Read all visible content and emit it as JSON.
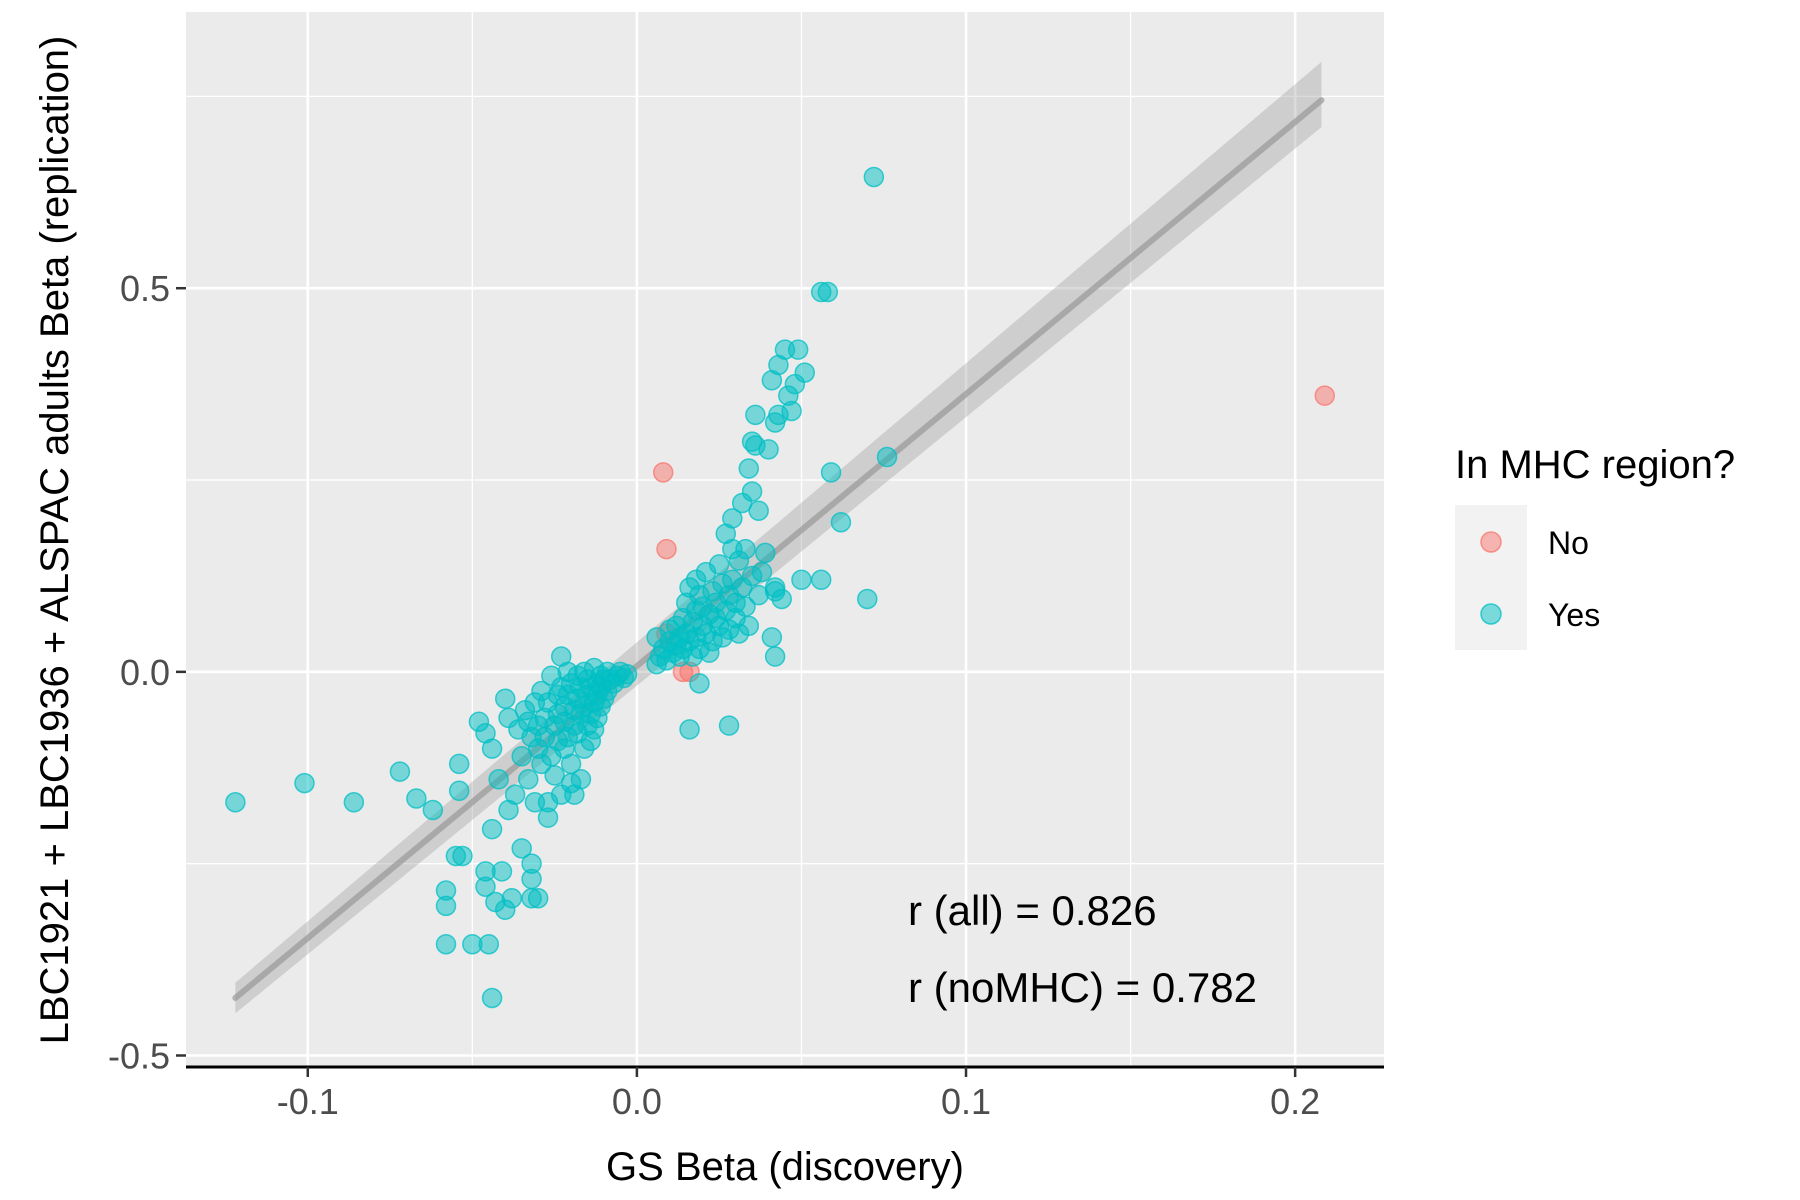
{
  "chart_data": {
    "type": "scatter",
    "xlabel": "GS Beta (discovery)",
    "ylabel": "LBC1921 + LBC1936 + ALSPAC adults Beta (replication)",
    "xlim": [
      -0.137,
      0.227
    ],
    "ylim": [
      -0.515,
      0.86
    ],
    "x_ticks": [
      -0.1,
      0.0,
      0.1,
      0.2
    ],
    "x_tick_labels": [
      "-0.1",
      "0.0",
      "0.1",
      "0.2"
    ],
    "y_ticks": [
      -0.5,
      0.0,
      0.5
    ],
    "y_tick_labels": [
      "-0.5",
      "0.0",
      "0.5"
    ],
    "grid": true,
    "legend": {
      "title": "In MHC region?",
      "position": "right",
      "entries": [
        {
          "label": "No",
          "color": "#F8766D"
        },
        {
          "label": "Yes",
          "color": "#00BFC4"
        }
      ]
    },
    "annotations": [
      "r (all) = 0.826",
      "r (noMHC) = 0.782"
    ],
    "regression": {
      "x": [
        -0.122,
        0.208
      ],
      "y": [
        -0.425,
        0.745
      ],
      "band_lower": [
        -0.445,
        0.71
      ],
      "band_upper": [
        -0.405,
        0.795
      ],
      "color": "#999999"
    },
    "series": [
      {
        "name": "No",
        "color": "#F8766D",
        "points": [
          [
            0.209,
            0.36
          ],
          [
            0.008,
            0.26
          ],
          [
            0.009,
            0.16
          ],
          [
            0.009,
            0.05
          ],
          [
            0.014,
            0.0
          ],
          [
            0.016,
            0.0
          ]
        ]
      },
      {
        "name": "Yes",
        "color": "#00BFC4",
        "points": [
          [
            -0.122,
            -0.17
          ],
          [
            -0.101,
            -0.145
          ],
          [
            -0.086,
            -0.17
          ],
          [
            -0.072,
            -0.13
          ],
          [
            -0.067,
            -0.165
          ],
          [
            -0.062,
            -0.18
          ],
          [
            -0.058,
            -0.285
          ],
          [
            -0.058,
            -0.305
          ],
          [
            -0.058,
            -0.355
          ],
          [
            -0.055,
            -0.24
          ],
          [
            -0.053,
            -0.24
          ],
          [
            -0.054,
            -0.155
          ],
          [
            -0.054,
            -0.12
          ],
          [
            -0.05,
            -0.355
          ],
          [
            -0.048,
            -0.065
          ],
          [
            -0.046,
            -0.08
          ],
          [
            -0.046,
            -0.26
          ],
          [
            -0.046,
            -0.28
          ],
          [
            -0.045,
            -0.355
          ],
          [
            -0.044,
            -0.1
          ],
          [
            -0.044,
            -0.205
          ],
          [
            -0.044,
            -0.425
          ],
          [
            -0.043,
            -0.3
          ],
          [
            -0.042,
            -0.14
          ],
          [
            -0.041,
            -0.26
          ],
          [
            -0.04,
            -0.31
          ],
          [
            -0.04,
            -0.035
          ],
          [
            -0.039,
            -0.06
          ],
          [
            -0.039,
            -0.18
          ],
          [
            -0.038,
            -0.295
          ],
          [
            -0.037,
            -0.16
          ],
          [
            -0.036,
            -0.075
          ],
          [
            -0.035,
            -0.23
          ],
          [
            -0.035,
            -0.11
          ],
          [
            -0.034,
            -0.05
          ],
          [
            -0.033,
            -0.065
          ],
          [
            -0.033,
            -0.14
          ],
          [
            -0.032,
            -0.085
          ],
          [
            -0.032,
            -0.25
          ],
          [
            -0.032,
            -0.27
          ],
          [
            -0.032,
            -0.295
          ],
          [
            -0.031,
            -0.04
          ],
          [
            -0.031,
            -0.17
          ],
          [
            -0.03,
            -0.295
          ],
          [
            -0.03,
            -0.07
          ],
          [
            -0.03,
            -0.1
          ],
          [
            -0.029,
            -0.12
          ],
          [
            -0.029,
            -0.025
          ],
          [
            -0.028,
            -0.06
          ],
          [
            -0.028,
            -0.085
          ],
          [
            -0.027,
            -0.19
          ],
          [
            -0.027,
            -0.17
          ],
          [
            -0.027,
            -0.04
          ],
          [
            -0.026,
            -0.11
          ],
          [
            -0.026,
            -0.005
          ],
          [
            -0.025,
            -0.07
          ],
          [
            -0.025,
            -0.135
          ],
          [
            -0.024,
            -0.03
          ],
          [
            -0.024,
            -0.09
          ],
          [
            -0.024,
            -0.055
          ],
          [
            -0.023,
            -0.02
          ],
          [
            -0.023,
            -0.16
          ],
          [
            -0.023,
            0.02
          ],
          [
            -0.022,
            -0.045
          ],
          [
            -0.022,
            -0.1
          ],
          [
            -0.022,
            -0.065
          ],
          [
            -0.021,
            0.0
          ],
          [
            -0.021,
            -0.03
          ],
          [
            -0.021,
            -0.085
          ],
          [
            -0.02,
            -0.015
          ],
          [
            -0.02,
            -0.12
          ],
          [
            -0.02,
            -0.145
          ],
          [
            -0.019,
            -0.05
          ],
          [
            -0.019,
            -0.07
          ],
          [
            -0.019,
            -0.16
          ],
          [
            -0.018,
            -0.035
          ],
          [
            -0.018,
            -0.08
          ],
          [
            -0.018,
            -0.005
          ],
          [
            -0.017,
            -0.02
          ],
          [
            -0.017,
            -0.055
          ],
          [
            -0.017,
            -0.14
          ],
          [
            -0.016,
            0.0
          ],
          [
            -0.016,
            -0.1
          ],
          [
            -0.016,
            -0.045
          ],
          [
            -0.015,
            -0.03
          ],
          [
            -0.015,
            -0.07
          ],
          [
            -0.015,
            -0.01
          ],
          [
            -0.014,
            -0.02
          ],
          [
            -0.014,
            -0.055
          ],
          [
            -0.014,
            -0.09
          ],
          [
            -0.013,
            0.005
          ],
          [
            -0.013,
            -0.04
          ],
          [
            -0.013,
            -0.075
          ],
          [
            -0.012,
            -0.015
          ],
          [
            -0.012,
            -0.03
          ],
          [
            -0.012,
            -0.06
          ],
          [
            -0.011,
            -0.005
          ],
          [
            -0.011,
            -0.045
          ],
          [
            -0.011,
            -0.02
          ],
          [
            -0.01,
            -0.01
          ],
          [
            -0.01,
            -0.035
          ],
          [
            -0.009,
            0.0
          ],
          [
            -0.009,
            -0.025
          ],
          [
            -0.008,
            -0.01
          ],
          [
            -0.007,
            -0.015
          ],
          [
            -0.006,
            -0.005
          ],
          [
            -0.005,
            0.0
          ],
          [
            -0.004,
            -0.008
          ],
          [
            -0.003,
            -0.003
          ],
          [
            0.006,
            0.045
          ],
          [
            0.006,
            0.01
          ],
          [
            0.007,
            0.02
          ],
          [
            0.008,
            0.03
          ],
          [
            0.009,
            0.015
          ],
          [
            0.01,
            0.04
          ],
          [
            0.01,
            0.055
          ],
          [
            0.011,
            0.025
          ],
          [
            0.012,
            0.035
          ],
          [
            0.012,
            0.06
          ],
          [
            0.013,
            0.02
          ],
          [
            0.013,
            0.045
          ],
          [
            0.014,
            0.03
          ],
          [
            0.014,
            0.07
          ],
          [
            0.015,
            0.05
          ],
          [
            0.015,
            0.09
          ],
          [
            0.016,
            0.04
          ],
          [
            0.016,
            0.11
          ],
          [
            0.016,
            -0.075
          ],
          [
            0.017,
            0.065
          ],
          [
            0.017,
            0.02
          ],
          [
            0.018,
            0.08
          ],
          [
            0.018,
            0.045
          ],
          [
            0.018,
            0.12
          ],
          [
            0.019,
            0.1
          ],
          [
            0.019,
            0.03
          ],
          [
            0.019,
            -0.015
          ],
          [
            0.02,
            0.06
          ],
          [
            0.02,
            0.085
          ],
          [
            0.021,
            0.13
          ],
          [
            0.021,
            0.05
          ],
          [
            0.022,
            0.075
          ],
          [
            0.022,
            0.025
          ],
          [
            0.023,
            0.105
          ],
          [
            0.023,
            0.04
          ],
          [
            0.024,
            0.07
          ],
          [
            0.024,
            0.09
          ],
          [
            0.025,
            0.06
          ],
          [
            0.025,
            0.14
          ],
          [
            0.026,
            0.115
          ],
          [
            0.026,
            0.045
          ],
          [
            0.027,
            0.18
          ],
          [
            0.027,
            0.08
          ],
          [
            0.028,
            0.1
          ],
          [
            0.028,
            0.055
          ],
          [
            0.028,
            -0.07
          ],
          [
            0.029,
            0.2
          ],
          [
            0.029,
            0.16
          ],
          [
            0.029,
            0.12
          ],
          [
            0.03,
            0.07
          ],
          [
            0.03,
            0.09
          ],
          [
            0.031,
            0.145
          ],
          [
            0.031,
            0.05
          ],
          [
            0.032,
            0.11
          ],
          [
            0.032,
            0.22
          ],
          [
            0.033,
            0.085
          ],
          [
            0.033,
            0.16
          ],
          [
            0.034,
            0.06
          ],
          [
            0.034,
            0.265
          ],
          [
            0.035,
            0.3
          ],
          [
            0.035,
            0.125
          ],
          [
            0.035,
            0.235
          ],
          [
            0.036,
            0.295
          ],
          [
            0.036,
            0.335
          ],
          [
            0.037,
            0.21
          ],
          [
            0.037,
            0.1
          ],
          [
            0.038,
            0.13
          ],
          [
            0.039,
            0.155
          ],
          [
            0.04,
            0.29
          ],
          [
            0.041,
            0.045
          ],
          [
            0.041,
            0.38
          ],
          [
            0.042,
            0.02
          ],
          [
            0.042,
            0.11
          ],
          [
            0.042,
            0.325
          ],
          [
            0.042,
            0.105
          ],
          [
            0.043,
            0.4
          ],
          [
            0.043,
            0.335
          ],
          [
            0.044,
            0.095
          ],
          [
            0.045,
            0.42
          ],
          [
            0.046,
            0.36
          ],
          [
            0.047,
            0.34
          ],
          [
            0.048,
            0.375
          ],
          [
            0.049,
            0.42
          ],
          [
            0.05,
            0.12
          ],
          [
            0.051,
            0.39
          ],
          [
            0.056,
            0.12
          ],
          [
            0.056,
            0.495
          ],
          [
            0.058,
            0.495
          ],
          [
            0.059,
            0.26
          ],
          [
            0.062,
            0.195
          ],
          [
            0.07,
            0.095
          ],
          [
            0.072,
            0.645
          ],
          [
            0.076,
            0.28
          ]
        ]
      }
    ]
  }
}
